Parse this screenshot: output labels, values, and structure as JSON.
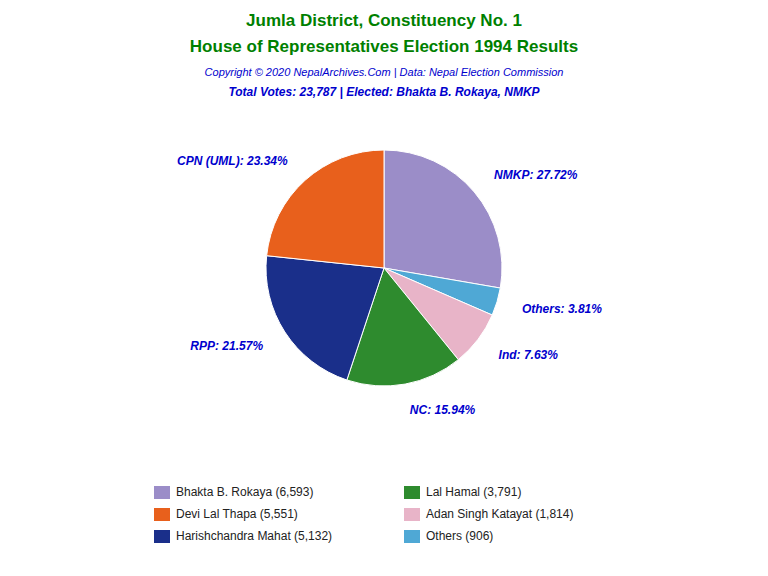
{
  "chart_data": {
    "type": "pie",
    "title": "Jumla District, Constituency No. 1",
    "subtitle": "House of Representatives Election 1994 Results",
    "title_color": "#008000",
    "annotations": [
      {
        "text": "Copyright © 2020 NepalArchives.Com | Data: Nepal Election Commission",
        "color": "#0000cd"
      },
      {
        "text": "Total Votes: 23,787 | Elected: Bhakta B. Rokaya, NMKP",
        "color": "#0000cd"
      }
    ],
    "values": [
      27.72,
      3.81,
      7.63,
      15.94,
      21.57,
      23.34
    ],
    "value_labels": [
      "NMKP: 27.72%",
      "Others: 3.81%",
      "Ind: 7.63%",
      "NC: 15.94%",
      "RPP: 21.57%",
      "CPN (UML): 23.34%"
    ],
    "colors": [
      "#9b8dc8",
      "#4fa8d5",
      "#e8b4c8",
      "#2e8b2e",
      "#1a2f8a",
      "#e8601c"
    ],
    "data_labels": true,
    "label_color": "#0000cd",
    "legend": "bottom",
    "legend_entries": [
      {
        "label": "Bhakta B. Rokaya (6,593)",
        "color": "#9b8dc8"
      },
      {
        "label": "Devi Lal Thapa (5,551)",
        "color": "#e8601c"
      },
      {
        "label": "Harishchandra Mahat (5,132)",
        "color": "#1a2f8a"
      },
      {
        "label": "Lal Hamal (3,791)",
        "color": "#2e8b2e"
      },
      {
        "label": "Adan Singh Katayat (1,814)",
        "color": "#e8b4c8"
      },
      {
        "label": "Others (906)",
        "color": "#4fa8d5"
      }
    ]
  }
}
